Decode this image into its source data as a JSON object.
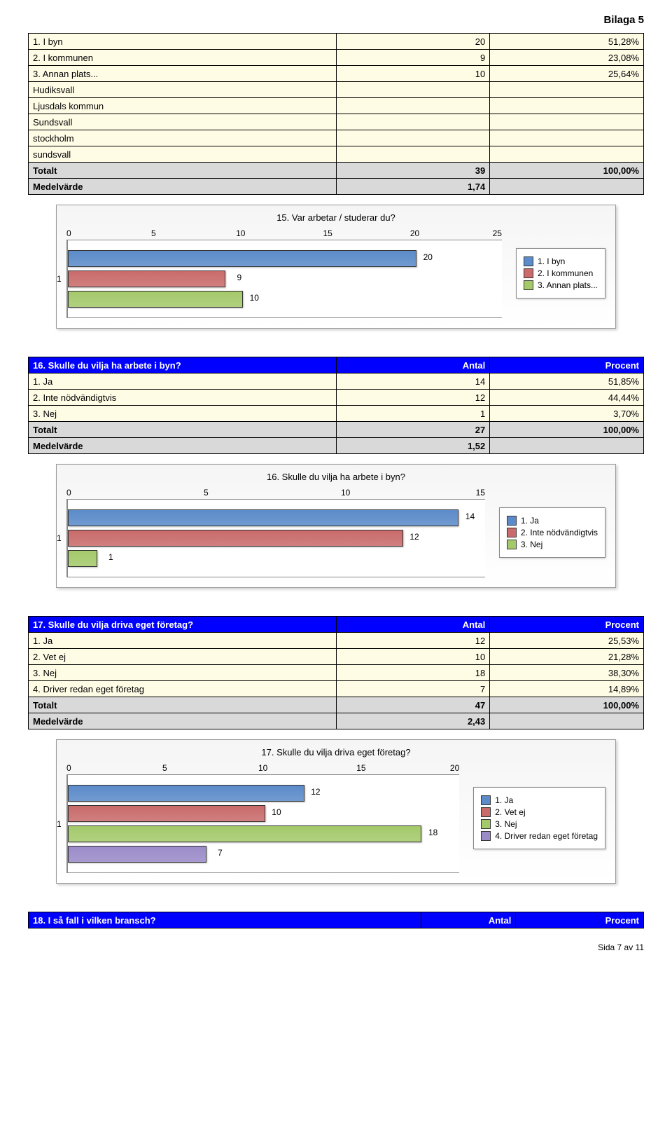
{
  "page_header": "Bilaga 5",
  "footer": "Sida 7 av 11",
  "labels": {
    "antal": "Antal",
    "procent": "Procent",
    "totalt": "Totalt",
    "medel": "Medelvärde"
  },
  "colors": {
    "blue": "#5b8bc9",
    "red": "#c96b6b",
    "green": "#a4c96b",
    "purple": "#9b8bc9",
    "header_bg": "#0000ff",
    "header_fg": "#ffffff",
    "row_bg": "#fffce6",
    "total_bg": "#d9d9d9"
  },
  "table1": {
    "rows": [
      {
        "label": "1. I byn",
        "n": "20",
        "p": "51,28%"
      },
      {
        "label": "2. I kommunen",
        "n": "9",
        "p": "23,08%"
      },
      {
        "label": "3. Annan plats...",
        "n": "10",
        "p": "25,64%"
      },
      {
        "label": "Hudiksvall",
        "n": "",
        "p": ""
      },
      {
        "label": "Ljusdals kommun",
        "n": "",
        "p": ""
      },
      {
        "label": "Sundsvall",
        "n": "",
        "p": ""
      },
      {
        "label": "stockholm",
        "n": "",
        "p": ""
      },
      {
        "label": "sundsvall",
        "n": "",
        "p": ""
      }
    ],
    "totalt_n": "39",
    "totalt_p": "100,00%",
    "medel": "1,74"
  },
  "chart1": {
    "title": "15. Var arbetar / studerar du?",
    "xmax": 25,
    "ticks": [
      "0",
      "5",
      "10",
      "15",
      "20",
      "25"
    ],
    "ylabel": "1",
    "bars": [
      {
        "value": 20,
        "label": "20",
        "color": "#5b8bc9",
        "legend": "1. I byn"
      },
      {
        "value": 9,
        "label": "9",
        "color": "#c96b6b",
        "legend": "2. I kommunen"
      },
      {
        "value": 10,
        "label": "10",
        "color": "#a4c96b",
        "legend": "3. Annan plats..."
      }
    ]
  },
  "q16": {
    "question": "16. Skulle du vilja ha arbete i byn?",
    "rows": [
      {
        "label": "1. Ja",
        "n": "14",
        "p": "51,85%"
      },
      {
        "label": "2. Inte nödvändigtvis",
        "n": "12",
        "p": "44,44%"
      },
      {
        "label": "3. Nej",
        "n": "1",
        "p": "3,70%"
      }
    ],
    "totalt_n": "27",
    "totalt_p": "100,00%",
    "medel": "1,52"
  },
  "chart2": {
    "title": "16. Skulle du vilja ha arbete i byn?",
    "xmax": 15,
    "ticks": [
      "0",
      "5",
      "10",
      "15"
    ],
    "ylabel": "1",
    "bars": [
      {
        "value": 14,
        "label": "14",
        "color": "#5b8bc9",
        "legend": "1. Ja"
      },
      {
        "value": 12,
        "label": "12",
        "color": "#c96b6b",
        "legend": "2. Inte nödvändigtvis"
      },
      {
        "value": 1,
        "label": "1",
        "color": "#a4c96b",
        "legend": "3. Nej"
      }
    ]
  },
  "q17": {
    "question": "17. Skulle du vilja driva eget företag?",
    "rows": [
      {
        "label": "1. Ja",
        "n": "12",
        "p": "25,53%"
      },
      {
        "label": "2. Vet ej",
        "n": "10",
        "p": "21,28%"
      },
      {
        "label": "3. Nej",
        "n": "18",
        "p": "38,30%"
      },
      {
        "label": "4. Driver redan eget företag",
        "n": "7",
        "p": "14,89%"
      }
    ],
    "totalt_n": "47",
    "totalt_p": "100,00%",
    "medel": "2,43"
  },
  "chart3": {
    "title": "17. Skulle du vilja driva eget företag?",
    "xmax": 20,
    "ticks": [
      "0",
      "5",
      "10",
      "15",
      "20"
    ],
    "ylabel": "1",
    "bars": [
      {
        "value": 12,
        "label": "12",
        "color": "#5b8bc9",
        "legend": "1. Ja"
      },
      {
        "value": 10,
        "label": "10",
        "color": "#c96b6b",
        "legend": "2. Vet ej"
      },
      {
        "value": 18,
        "label": "18",
        "color": "#a4c96b",
        "legend": "3. Nej"
      },
      {
        "value": 7,
        "label": "7",
        "color": "#9b8bc9",
        "legend": "4. Driver redan eget företag"
      }
    ]
  },
  "q18": {
    "question": "18. I så fall i vilken bransch?"
  }
}
